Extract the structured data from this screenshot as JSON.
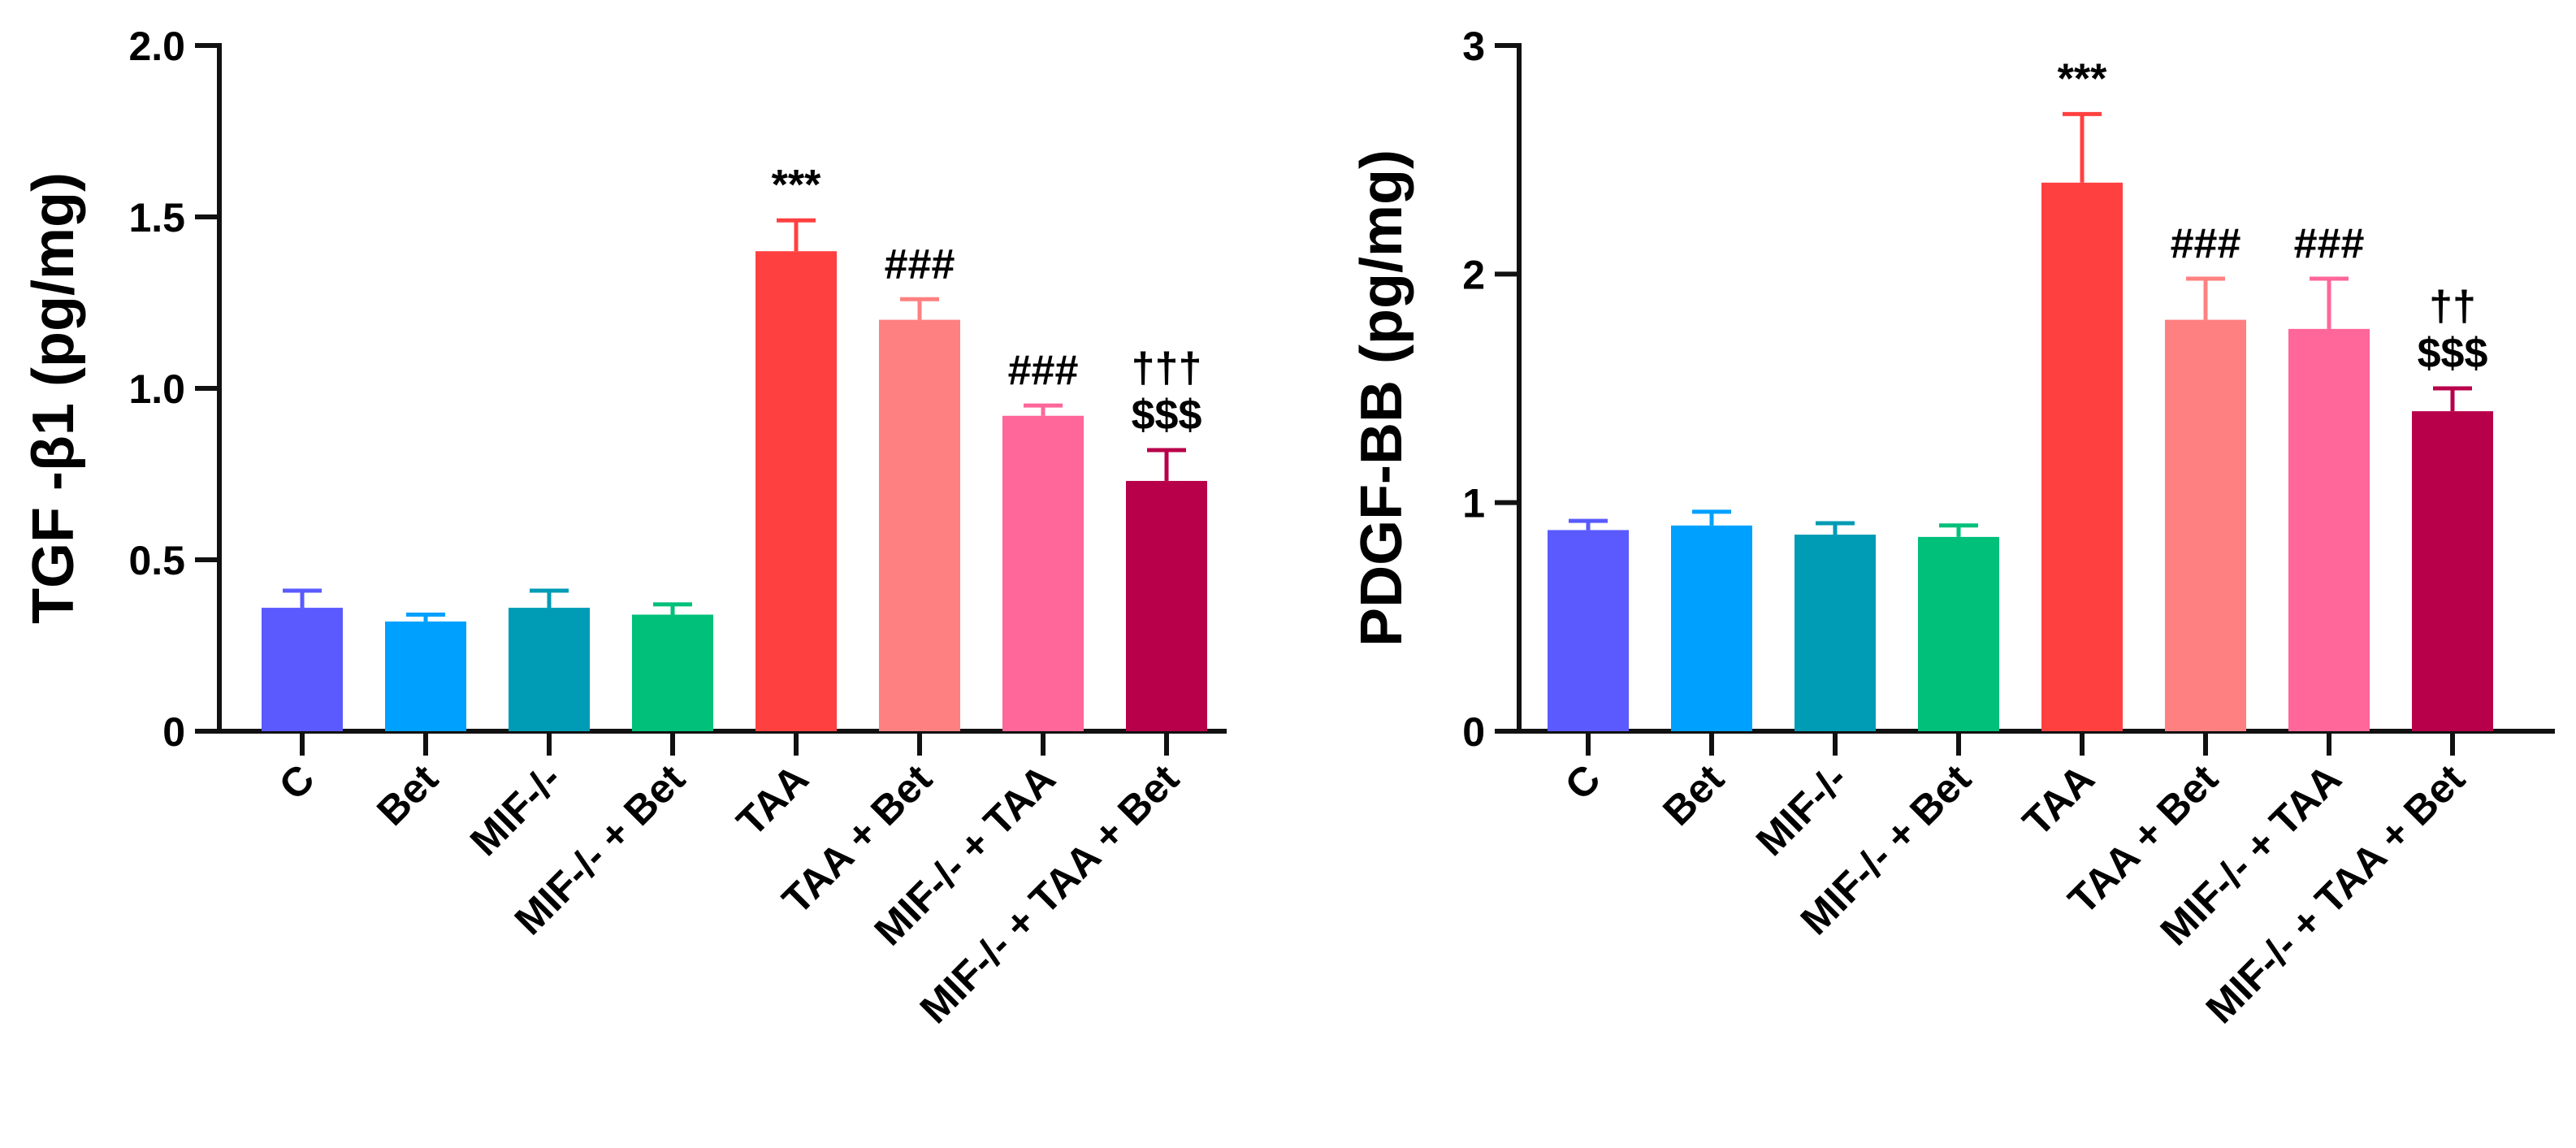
{
  "chart_data": [
    {
      "type": "bar",
      "ylabel": "TGF -β1 (pg/mg)",
      "xlabel": "",
      "ylim": [
        0,
        2.0
      ],
      "yticks": [
        {
          "value": 0,
          "label": "0"
        },
        {
          "value": 0.5,
          "label": "0.5"
        },
        {
          "value": 1.0,
          "label": "1.0"
        },
        {
          "value": 1.5,
          "label": "1.5"
        },
        {
          "value": 2.0,
          "label": "2.0"
        }
      ],
      "categories": [
        "C",
        "Bet",
        "MIF-/-",
        "MIF-/- + Bet",
        "TAA",
        "TAA + Bet",
        "MIF-/- + TAA",
        "MIF-/- + TAA + Bet"
      ],
      "values": [
        0.36,
        0.32,
        0.36,
        0.34,
        1.4,
        1.2,
        0.92,
        0.73
      ],
      "errors": [
        0.05,
        0.02,
        0.05,
        0.03,
        0.09,
        0.06,
        0.03,
        0.09
      ],
      "colors": [
        "#5a5aff",
        "#00a0ff",
        "#009bb4",
        "#00c07a",
        "#ff4040",
        "#ff8080",
        "#ff6699",
        "#b8004a"
      ],
      "annotations": [
        [],
        [],
        [],
        [],
        [
          "***"
        ],
        [
          "###"
        ],
        [
          "###"
        ],
        [
          "†††",
          "$$$"
        ]
      ]
    },
    {
      "type": "bar",
      "ylabel": "PDGF-BB (pg/mg)",
      "xlabel": "",
      "ylim": [
        0,
        3
      ],
      "yticks": [
        {
          "value": 0,
          "label": "0"
        },
        {
          "value": 1,
          "label": "1"
        },
        {
          "value": 2,
          "label": "2"
        },
        {
          "value": 3,
          "label": "3"
        }
      ],
      "categories": [
        "C",
        "Bet",
        "MIF-/-",
        "MIF-/- + Bet",
        "TAA",
        "TAA + Bet",
        "MIF-/- + TAA",
        "MIF-/- + TAA + Bet"
      ],
      "values": [
        0.88,
        0.9,
        0.86,
        0.85,
        2.4,
        1.8,
        1.76,
        1.4
      ],
      "errors": [
        0.04,
        0.06,
        0.05,
        0.05,
        0.3,
        0.18,
        0.22,
        0.1
      ],
      "colors": [
        "#5a5aff",
        "#00a0ff",
        "#009bb4",
        "#00c07a",
        "#ff4040",
        "#ff8080",
        "#ff6699",
        "#b8004a"
      ],
      "annotations": [
        [],
        [],
        [],
        [],
        [
          "***"
        ],
        [
          "###"
        ],
        [
          "###"
        ],
        [
          "††",
          "$$$"
        ]
      ]
    }
  ]
}
